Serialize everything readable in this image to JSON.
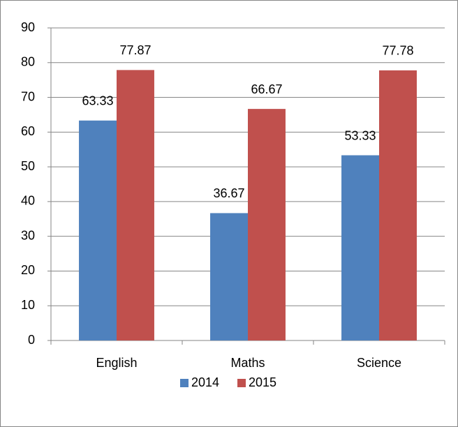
{
  "chart_data": {
    "type": "bar",
    "categories": [
      "English",
      "Maths",
      "Science"
    ],
    "series": [
      {
        "name": "2014",
        "color": "#4f81bd",
        "values": [
          63.33,
          36.67,
          53.33
        ]
      },
      {
        "name": "2015",
        "color": "#c0504d",
        "values": [
          77.87,
          66.67,
          77.78
        ]
      }
    ],
    "ylim": [
      0,
      90
    ],
    "yticks": [
      0,
      10,
      20,
      30,
      40,
      50,
      60,
      70,
      80,
      90
    ],
    "grid": true,
    "legend": "bottom"
  }
}
